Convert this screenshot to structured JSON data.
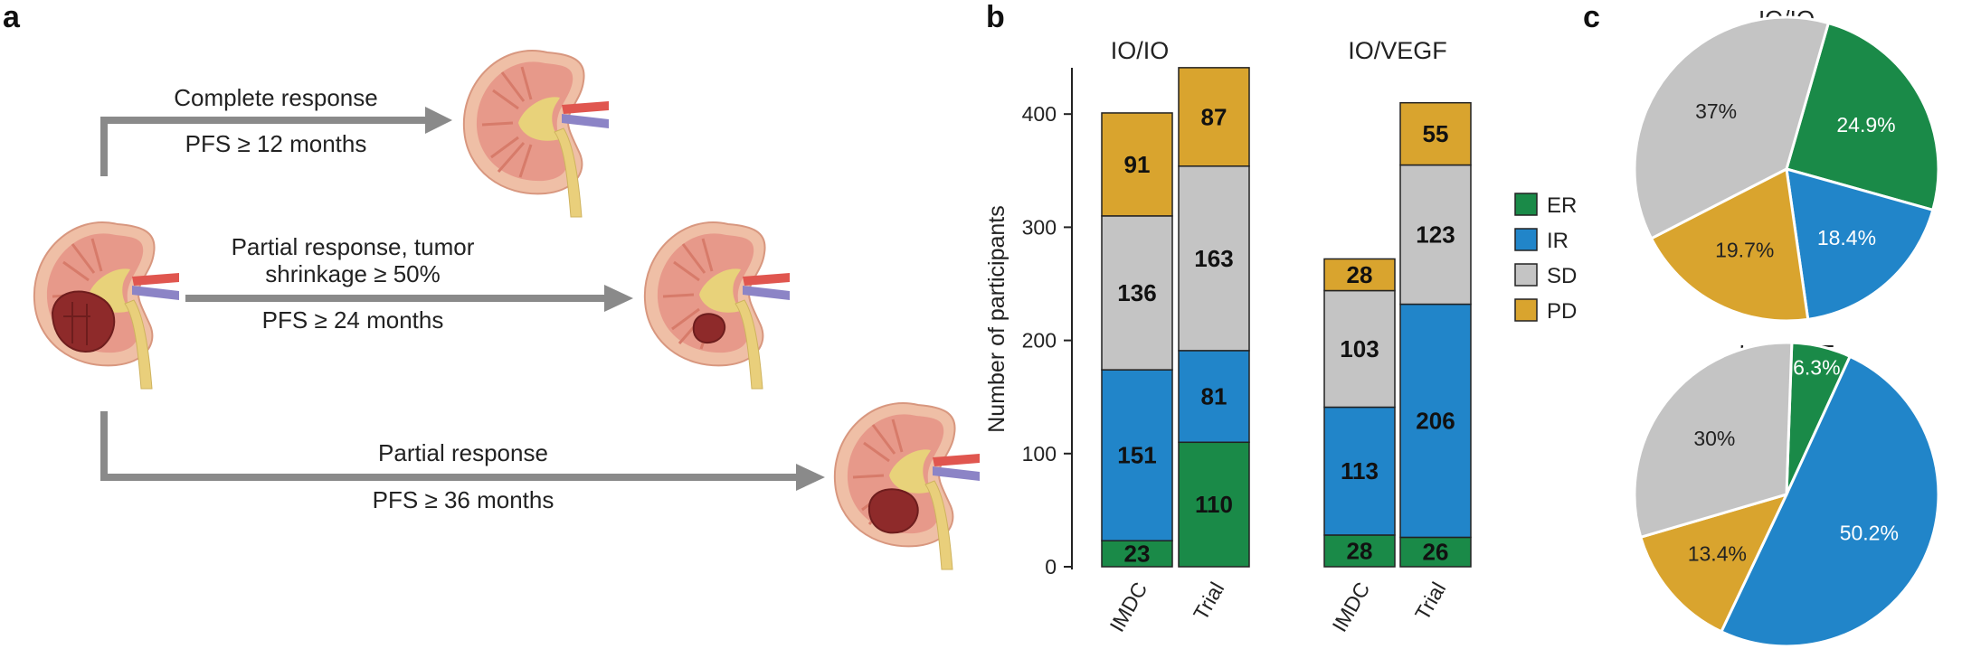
{
  "panel_letters": {
    "a": "a",
    "b": "b",
    "c": "c"
  },
  "panel_a": {
    "responses": [
      {
        "title": "Complete response",
        "pfs": "PFS ≥ 12 months"
      },
      {
        "title_line1": "Partial response, tumor",
        "title_line2": "shrinkage ≥ 50%",
        "pfs": "PFS ≥ 24 months"
      },
      {
        "title": "Partial response",
        "pfs": "PFS ≥ 36 months"
      }
    ],
    "colors": {
      "arrow": "#8a8a8a",
      "kidney_outer": "#efbfa6",
      "cortex": "#e7998a",
      "pelvis": "#e8d27a",
      "ureter": "#e9cf7b",
      "artery": "#e0564f",
      "vein": "#8c84c6",
      "tumor": "#8e2a2a"
    }
  },
  "chart_data": [
    {
      "type": "bar",
      "stacked": true,
      "ylabel": "Number of participants",
      "ylim": [
        0,
        440
      ],
      "yticks": [
        0,
        100,
        200,
        300,
        400
      ],
      "groups": [
        {
          "title": "IO/IO",
          "categories": [
            "IMDC",
            "Trial"
          ]
        },
        {
          "title": "IO/VEGF",
          "categories": [
            "IMDC",
            "Trial"
          ]
        }
      ],
      "categories": [
        "IMDC",
        "Trial",
        "IMDC",
        "Trial"
      ],
      "series": [
        {
          "name": "ER",
          "color": "#1a8a48",
          "values": [
            23,
            110,
            28,
            26
          ]
        },
        {
          "name": "IR",
          "color": "#2185c9",
          "values": [
            151,
            81,
            113,
            206
          ]
        },
        {
          "name": "SD",
          "color": "#c4c4c4",
          "values": [
            136,
            163,
            103,
            123
          ]
        },
        {
          "name": "PD",
          "color": "#d9a42e",
          "values": [
            91,
            87,
            28,
            55
          ]
        }
      ],
      "legend": {
        "placement": "right"
      }
    },
    {
      "type": "pie",
      "title": "IO/IO",
      "slices": [
        {
          "name": "ER",
          "label": "24.9%",
          "value": 24.9,
          "color": "#1a8a48"
        },
        {
          "name": "IR",
          "label": "18.4%",
          "value": 18.4,
          "color": "#2185c9"
        },
        {
          "name": "PD",
          "label": "19.7%",
          "value": 19.7,
          "color": "#d9a42e"
        },
        {
          "name": "SD",
          "label": "37%",
          "value": 37.0,
          "color": "#c4c4c4"
        }
      ]
    },
    {
      "type": "pie",
      "title": "IO/VEGF",
      "slices": [
        {
          "name": "ER",
          "label": "6.3%",
          "value": 6.3,
          "color": "#1a8a48"
        },
        {
          "name": "IR",
          "label": "50.2%",
          "value": 50.2,
          "color": "#2185c9"
        },
        {
          "name": "PD",
          "label": "13.4%",
          "value": 13.4,
          "color": "#d9a42e"
        },
        {
          "name": "SD",
          "label": "30%",
          "value": 30.1,
          "color": "#c4c4c4"
        }
      ]
    }
  ]
}
